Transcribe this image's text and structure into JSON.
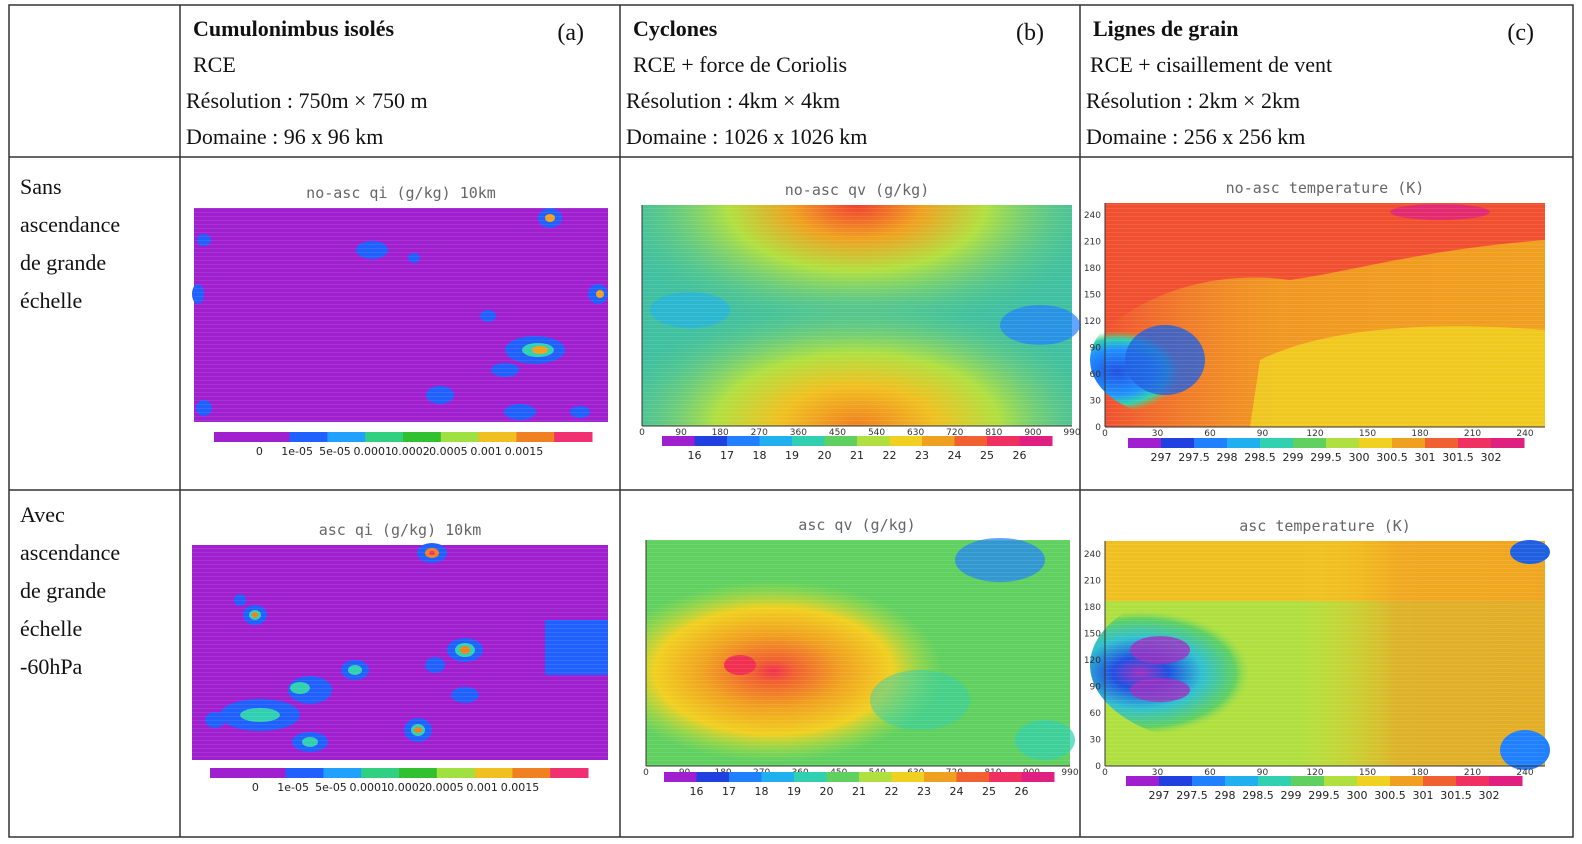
{
  "columns": [
    {
      "title": "Cumulonimbus isolés",
      "tag": "(a)",
      "line2": "RCE",
      "line3": "Résolution : 750m × 750 m",
      "line4": "Domaine :  96 x 96 km"
    },
    {
      "title": "Cyclones",
      "tag": "(b)",
      "line2": "RCE + force de Coriolis",
      "line3": "Résolution : 4km × 4km",
      "line4": "Domaine :  1026 x 1026 km"
    },
    {
      "title": "Lignes de grain",
      "tag": "(c)",
      "line2": "RCE + cisaillement de vent",
      "line3": "Résolution : 2km × 2km",
      "line4": "Domaine :  256 x 256 km"
    }
  ],
  "rows": [
    {
      "label_lines": [
        "Sans",
        "ascendance",
        "de grande",
        "échelle"
      ]
    },
    {
      "label_lines": [
        "Avec",
        "ascendance",
        "de grande",
        "échelle",
        "-60hPa"
      ]
    }
  ],
  "plots": {
    "r0c0": {
      "title": "no-asc qi (g/kg) 10km"
    },
    "r0c1": {
      "title": "no-asc qv (g/kg)"
    },
    "r0c2": {
      "title": "no-asc temperature (K)"
    },
    "r1c0": {
      "title": "asc qi (g/kg) 10km"
    },
    "r1c1": {
      "title": "asc qv (g/kg)"
    },
    "r1c2": {
      "title": "asc temperature (K)"
    }
  },
  "colorbars": {
    "qi": {
      "labels": [
        "0",
        "1e-05",
        "5e-05",
        "0.0001",
        "0.0002",
        "0.0005",
        "0.001",
        "0.0015"
      ],
      "colors": [
        "#a020d0",
        "#a020d0",
        "#2060ff",
        "#20a0ff",
        "#30d080",
        "#30c030",
        "#a0e040",
        "#f0c020",
        "#f08020",
        "#f03070"
      ]
    },
    "qv": {
      "labels": [
        "16",
        "17",
        "18",
        "19",
        "20",
        "21",
        "22",
        "23",
        "24",
        "25",
        "26"
      ],
      "colors": [
        "#a020d0",
        "#2040e0",
        "#2080ff",
        "#20b0f0",
        "#30d0b0",
        "#60d060",
        "#b0e040",
        "#f0d020",
        "#f0a020",
        "#f06030",
        "#f03060",
        "#e02080"
      ]
    },
    "temp": {
      "labels": [
        "297",
        "297.5",
        "298",
        "298.5",
        "299",
        "299.5",
        "300",
        "300.5",
        "301",
        "301.5",
        "302"
      ],
      "colors": [
        "#a020d0",
        "#2040e0",
        "#2080ff",
        "#20b0f0",
        "#30d0b0",
        "#60d060",
        "#b0e040",
        "#f0d020",
        "#f0a020",
        "#f06030",
        "#f03060",
        "#e02080"
      ]
    }
  },
  "axes": {
    "cyclone_x": [
      "0",
      "90",
      "180",
      "270",
      "360",
      "450",
      "540",
      "630",
      "720",
      "810",
      "900",
      "990"
    ],
    "squall_x": [
      "0",
      "30",
      "60",
      "90",
      "120",
      "150",
      "180",
      "210",
      "240"
    ],
    "squall_y": [
      "0",
      "30",
      "60",
      "90",
      "120",
      "150",
      "180",
      "210",
      "240"
    ]
  },
  "colors": {
    "qi_bg": "#a020d0",
    "border": "#333333"
  }
}
